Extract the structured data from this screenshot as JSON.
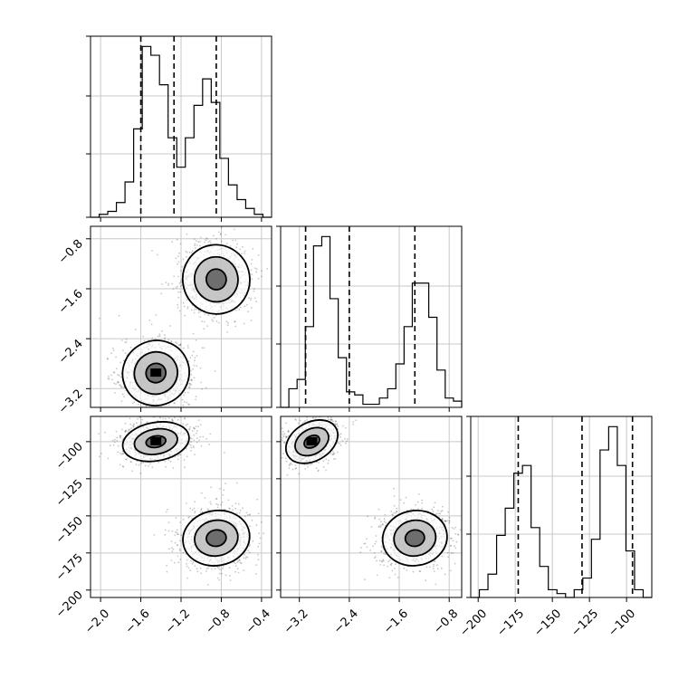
{
  "chart_data": [
    {
      "type": "histogram",
      "panel": "x-marginal",
      "bins": [
        -2.1,
        -0.3
      ],
      "heights": [
        0,
        1,
        2,
        5,
        12,
        30,
        58,
        55,
        45,
        27,
        17,
        27,
        38,
        47,
        39,
        20,
        11,
        6,
        3,
        1,
        0
      ],
      "quantiles": [
        -1.6,
        -1.27,
        -0.85
      ],
      "xticks": [
        "-2.0",
        "-1.6",
        "-1.2",
        "-0.8",
        "-0.4"
      ],
      "grid": true
    },
    {
      "type": "histogram",
      "panel": "y-marginal",
      "bins": [
        -3.5,
        -0.6
      ],
      "heights": [
        0,
        6,
        9,
        26,
        52,
        55,
        35,
        16,
        5,
        4,
        1,
        1,
        3,
        6,
        14,
        26,
        40,
        40,
        29,
        12,
        3,
        2
      ],
      "quantiles": [
        -3.1,
        -2.4,
        -1.35
      ],
      "xticks": [
        "-3.2",
        "-2.4",
        "-1.6",
        "-0.8"
      ],
      "grid": true
    },
    {
      "type": "histogram",
      "panel": "z-marginal",
      "bins": [
        -205,
        -83
      ],
      "heights": [
        0,
        2,
        6,
        16,
        23,
        32,
        34,
        18,
        8,
        2,
        1,
        0,
        2,
        5,
        15,
        38,
        44,
        34,
        12,
        2,
        0
      ],
      "quantiles": [
        -173,
        -130,
        -96
      ],
      "xticks": [
        "-200",
        "-175",
        "-150",
        "-125",
        "-100"
      ],
      "grid": true
    },
    {
      "type": "scatter",
      "panel": "x-vs-y",
      "xlim": [
        -2.1,
        -0.3
      ],
      "ylim": [
        -3.5,
        -0.6
      ],
      "clusters": [
        {
          "center": [
            -1.45,
            -2.95
          ],
          "spread": [
            0.18,
            0.28
          ]
        },
        {
          "center": [
            -0.85,
            -1.45
          ],
          "spread": [
            0.18,
            0.3
          ]
        }
      ],
      "yticks": [
        "-0.8",
        "-1.6",
        "-2.4",
        "-3.2"
      ],
      "grid": true
    },
    {
      "type": "scatter",
      "panel": "x-vs-z",
      "xlim": [
        -2.1,
        -0.3
      ],
      "ylim": [
        -205,
        -83
      ],
      "clusters": [
        {
          "center": [
            -1.45,
            -100
          ],
          "spread": [
            0.18,
            7
          ]
        },
        {
          "center": [
            -0.85,
            -165
          ],
          "spread": [
            0.18,
            10
          ]
        }
      ],
      "xticks": [
        "-2.0",
        "-1.6",
        "-1.2",
        "-0.8",
        "-0.4"
      ],
      "yticks": [
        "-100",
        "-125",
        "-150",
        "-175",
        "-200"
      ],
      "grid": true
    },
    {
      "type": "scatter",
      "panel": "y-vs-z",
      "xlim": [
        -3.5,
        -0.6
      ],
      "ylim": [
        -205,
        -83
      ],
      "clusters": [
        {
          "center": [
            -3.0,
            -100
          ],
          "spread": [
            0.24,
            7
          ]
        },
        {
          "center": [
            -1.35,
            -165
          ],
          "spread": [
            0.28,
            10
          ]
        }
      ],
      "xticks": [
        "-3.2",
        "-2.4",
        "-1.6",
        "-0.8"
      ],
      "grid": true
    }
  ]
}
